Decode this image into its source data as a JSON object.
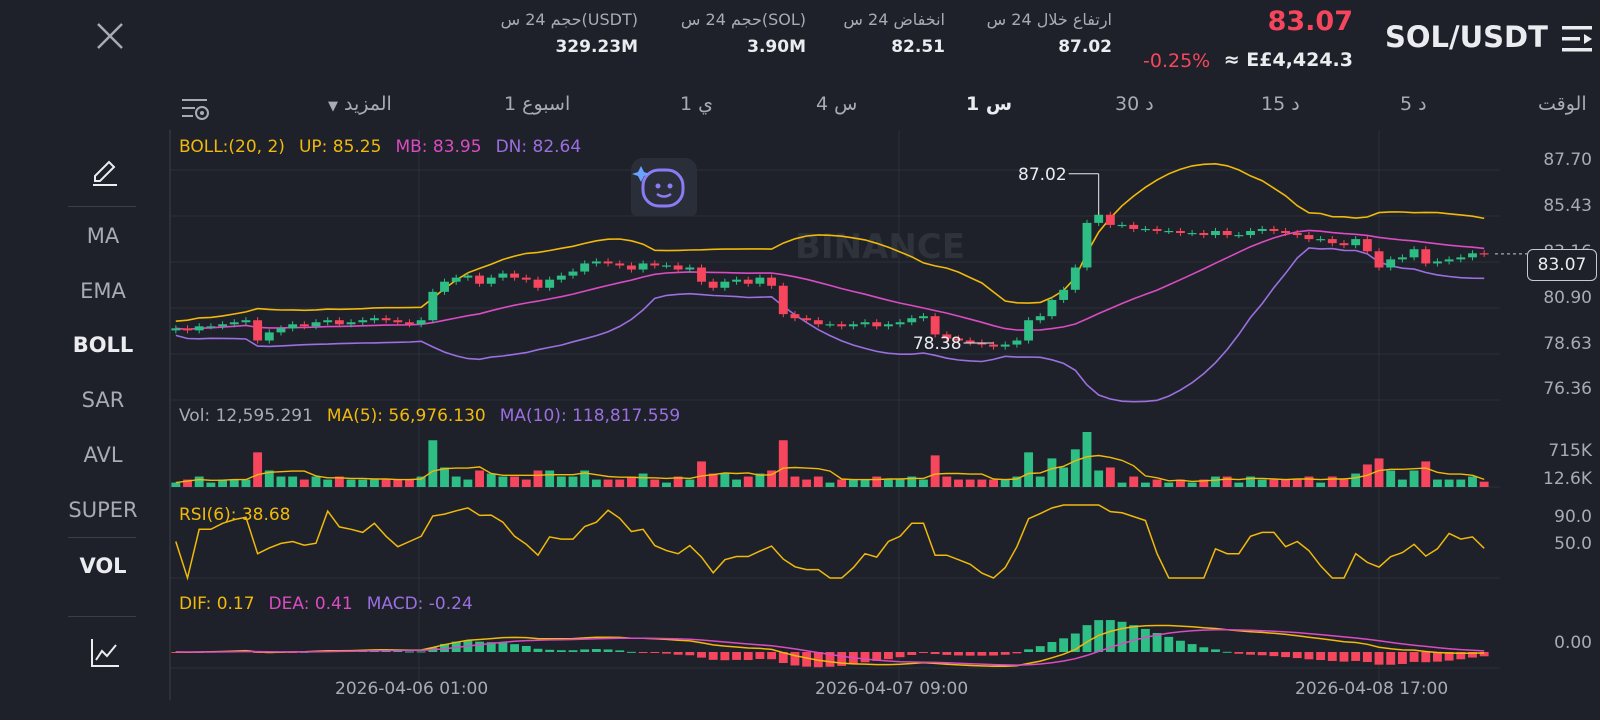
{
  "header": {
    "pair": "SOL/USDT",
    "last_price": "83.07",
    "change_pct": "-0.25%",
    "fiat_equiv": "≈ E£4,424.3",
    "stats": [
      {
        "label": "ارتفاع خلال 24 س",
        "value": "87.02"
      },
      {
        "label": "انخفاض 24 س",
        "value": "82.51"
      },
      {
        "label": "حجم 24 س(SOL)",
        "value": "3.90M"
      },
      {
        "label": "حجم 24 س(USDT)",
        "value": "329.23M"
      }
    ]
  },
  "timeframes": {
    "label_time": "الوقت",
    "items": [
      "5 د",
      "15 د",
      "30 د",
      "1 س",
      "4 س",
      "1 ي",
      "1 اسبوع"
    ],
    "active": "1 س",
    "more": "المزيد"
  },
  "sidebar": {
    "items": [
      "MA",
      "EMA",
      "BOLL",
      "SAR",
      "AVL",
      "SUPER",
      "VOL"
    ],
    "active": [
      "BOLL",
      "VOL"
    ]
  },
  "watermark": "BINANCE",
  "boll_legend": {
    "name": "BOLL:(20, 2)",
    "up": "UP: 85.25",
    "mb": "MB: 83.95",
    "dn": "DN: 82.64"
  },
  "vol_legend": {
    "vol": "Vol: 12,595.291",
    "ma5": "MA(5): 56,976.130",
    "ma10": "MA(10): 118,817.559"
  },
  "rsi_legend": {
    "rsi": "RSI(6): 38.68"
  },
  "macd_legend": {
    "dif": "DIF: 0.17",
    "dea": "DEA: 0.41",
    "macd": "MACD: -0.24"
  },
  "price_axis": [
    "87.70",
    "85.43",
    "83.16",
    "80.90",
    "78.63",
    "76.36"
  ],
  "current_price_tag": "83.07",
  "vol_axis": [
    "715K",
    "12.6K"
  ],
  "rsi_axis": [
    "90.0",
    "50.0"
  ],
  "macd_axis": [
    "0.00"
  ],
  "date_axis": [
    "2026-04-06 01:00",
    "2026-04-07 09:00",
    "2026-04-08 17:00"
  ],
  "annotations": {
    "high": "87.02",
    "low": "78.38"
  },
  "colors": {
    "up": "#2ebd85",
    "down": "#f6465d",
    "boll_up": "#f0b90b",
    "boll_mb": "#d94cc2",
    "boll_dn": "#9b6fe0",
    "bg": "#1e2129"
  },
  "chart_data": {
    "type": "candlestick",
    "price_range": [
      76.36,
      87.7
    ],
    "closes": [
      79.4,
      79.3,
      79.5,
      79.5,
      79.6,
      79.7,
      79.8,
      78.8,
      79.2,
      79.4,
      79.6,
      79.5,
      79.7,
      79.8,
      79.6,
      79.7,
      79.8,
      79.9,
      79.8,
      79.7,
      79.6,
      79.8,
      81.2,
      81.7,
      81.9,
      82.0,
      81.6,
      81.9,
      82.1,
      81.9,
      81.8,
      81.4,
      81.8,
      82.0,
      82.2,
      82.6,
      82.7,
      82.6,
      82.5,
      82.3,
      82.6,
      82.5,
      82.5,
      82.3,
      82.4,
      81.7,
      81.4,
      81.7,
      81.8,
      81.6,
      81.9,
      81.5,
      80.1,
      79.9,
      79.8,
      79.6,
      79.6,
      79.5,
      79.6,
      79.7,
      79.5,
      79.6,
      79.7,
      79.9,
      80.0,
      79.1,
      78.9,
      78.8,
      78.7,
      78.6,
      78.5,
      78.6,
      78.8,
      79.8,
      80.0,
      80.8,
      81.3,
      82.4,
      84.6,
      85.0,
      84.5,
      84.5,
      84.3,
      84.3,
      84.2,
      84.2,
      84.1,
      84.1,
      84.0,
      84.2,
      84.0,
      84.0,
      84.2,
      84.3,
      84.2,
      84.1,
      84.0,
      83.8,
      83.8,
      83.6,
      83.5,
      83.8,
      83.2,
      82.4,
      82.8,
      82.9,
      83.3,
      82.6,
      82.7,
      82.8,
      82.9,
      83.1,
      83.07
    ],
    "volume_range": [
      0,
      750000
    ],
    "rsi_range": [
      0,
      100
    ],
    "high_point": {
      "value": 87.02
    },
    "low_point": {
      "value": 78.38
    }
  }
}
